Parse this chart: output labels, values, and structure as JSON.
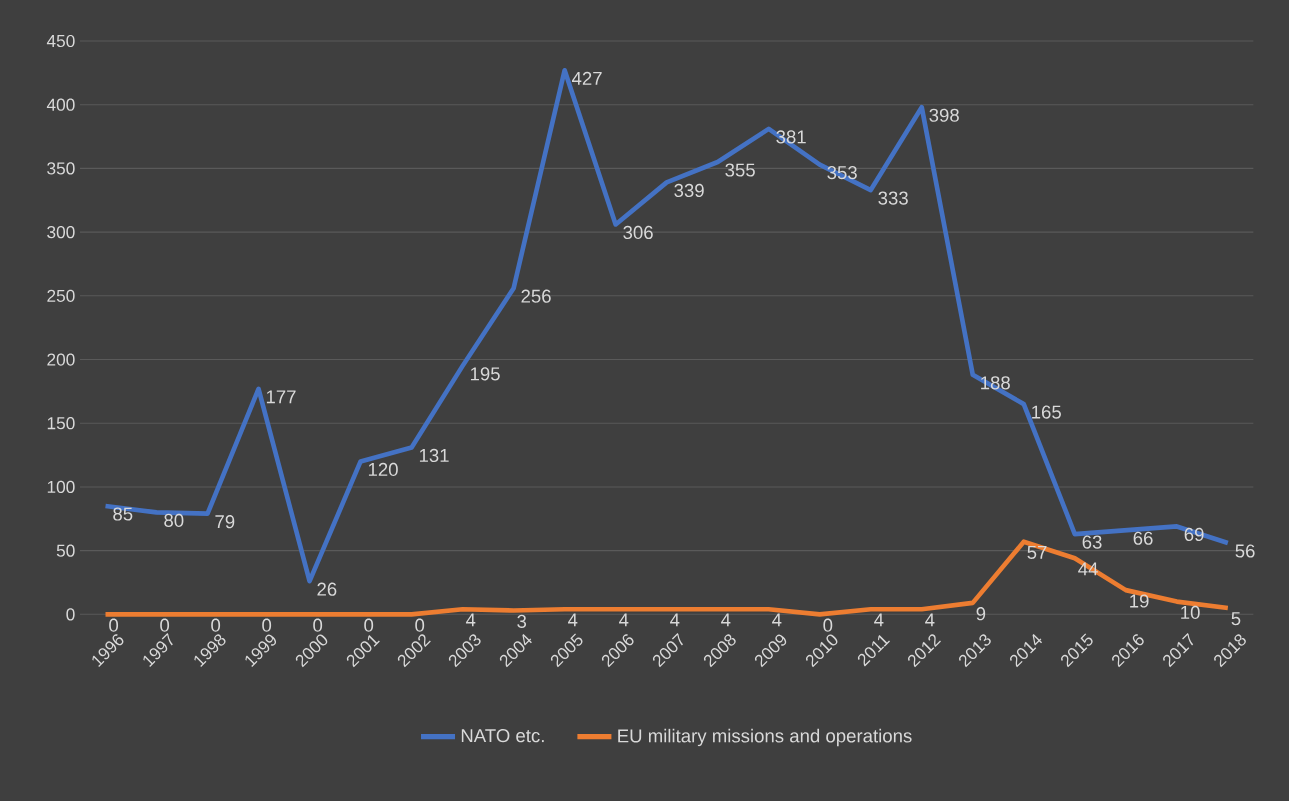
{
  "chart_data": {
    "type": "line",
    "categories": [
      "1996",
      "1997",
      "1998",
      "1999",
      "2000",
      "2001",
      "2002",
      "2003",
      "2004",
      "2005",
      "2006",
      "2007",
      "2008",
      "2009",
      "2010",
      "2011",
      "2012",
      "2013",
      "2014",
      "2015",
      "2016",
      "2017",
      "2018"
    ],
    "series": [
      {
        "name": "NATO etc.",
        "color": "#4472c4",
        "values": [
          85,
          80,
          79,
          177,
          26,
          120,
          131,
          195,
          256,
          427,
          306,
          339,
          355,
          381,
          353,
          333,
          398,
          188,
          165,
          63,
          66,
          69,
          56
        ]
      },
      {
        "name": "EU military missions and operations",
        "color": "#ed7d31",
        "values": [
          0,
          0,
          0,
          0,
          0,
          0,
          0,
          4,
          3,
          4,
          4,
          4,
          4,
          4,
          0,
          4,
          4,
          9,
          57,
          44,
          19,
          10,
          5
        ]
      }
    ],
    "ylim": [
      0,
      450
    ],
    "yticks": [
      0,
      50,
      100,
      150,
      200,
      250,
      300,
      350,
      400,
      450
    ],
    "grid": "y",
    "legend": "bottom",
    "data_labels": true
  }
}
